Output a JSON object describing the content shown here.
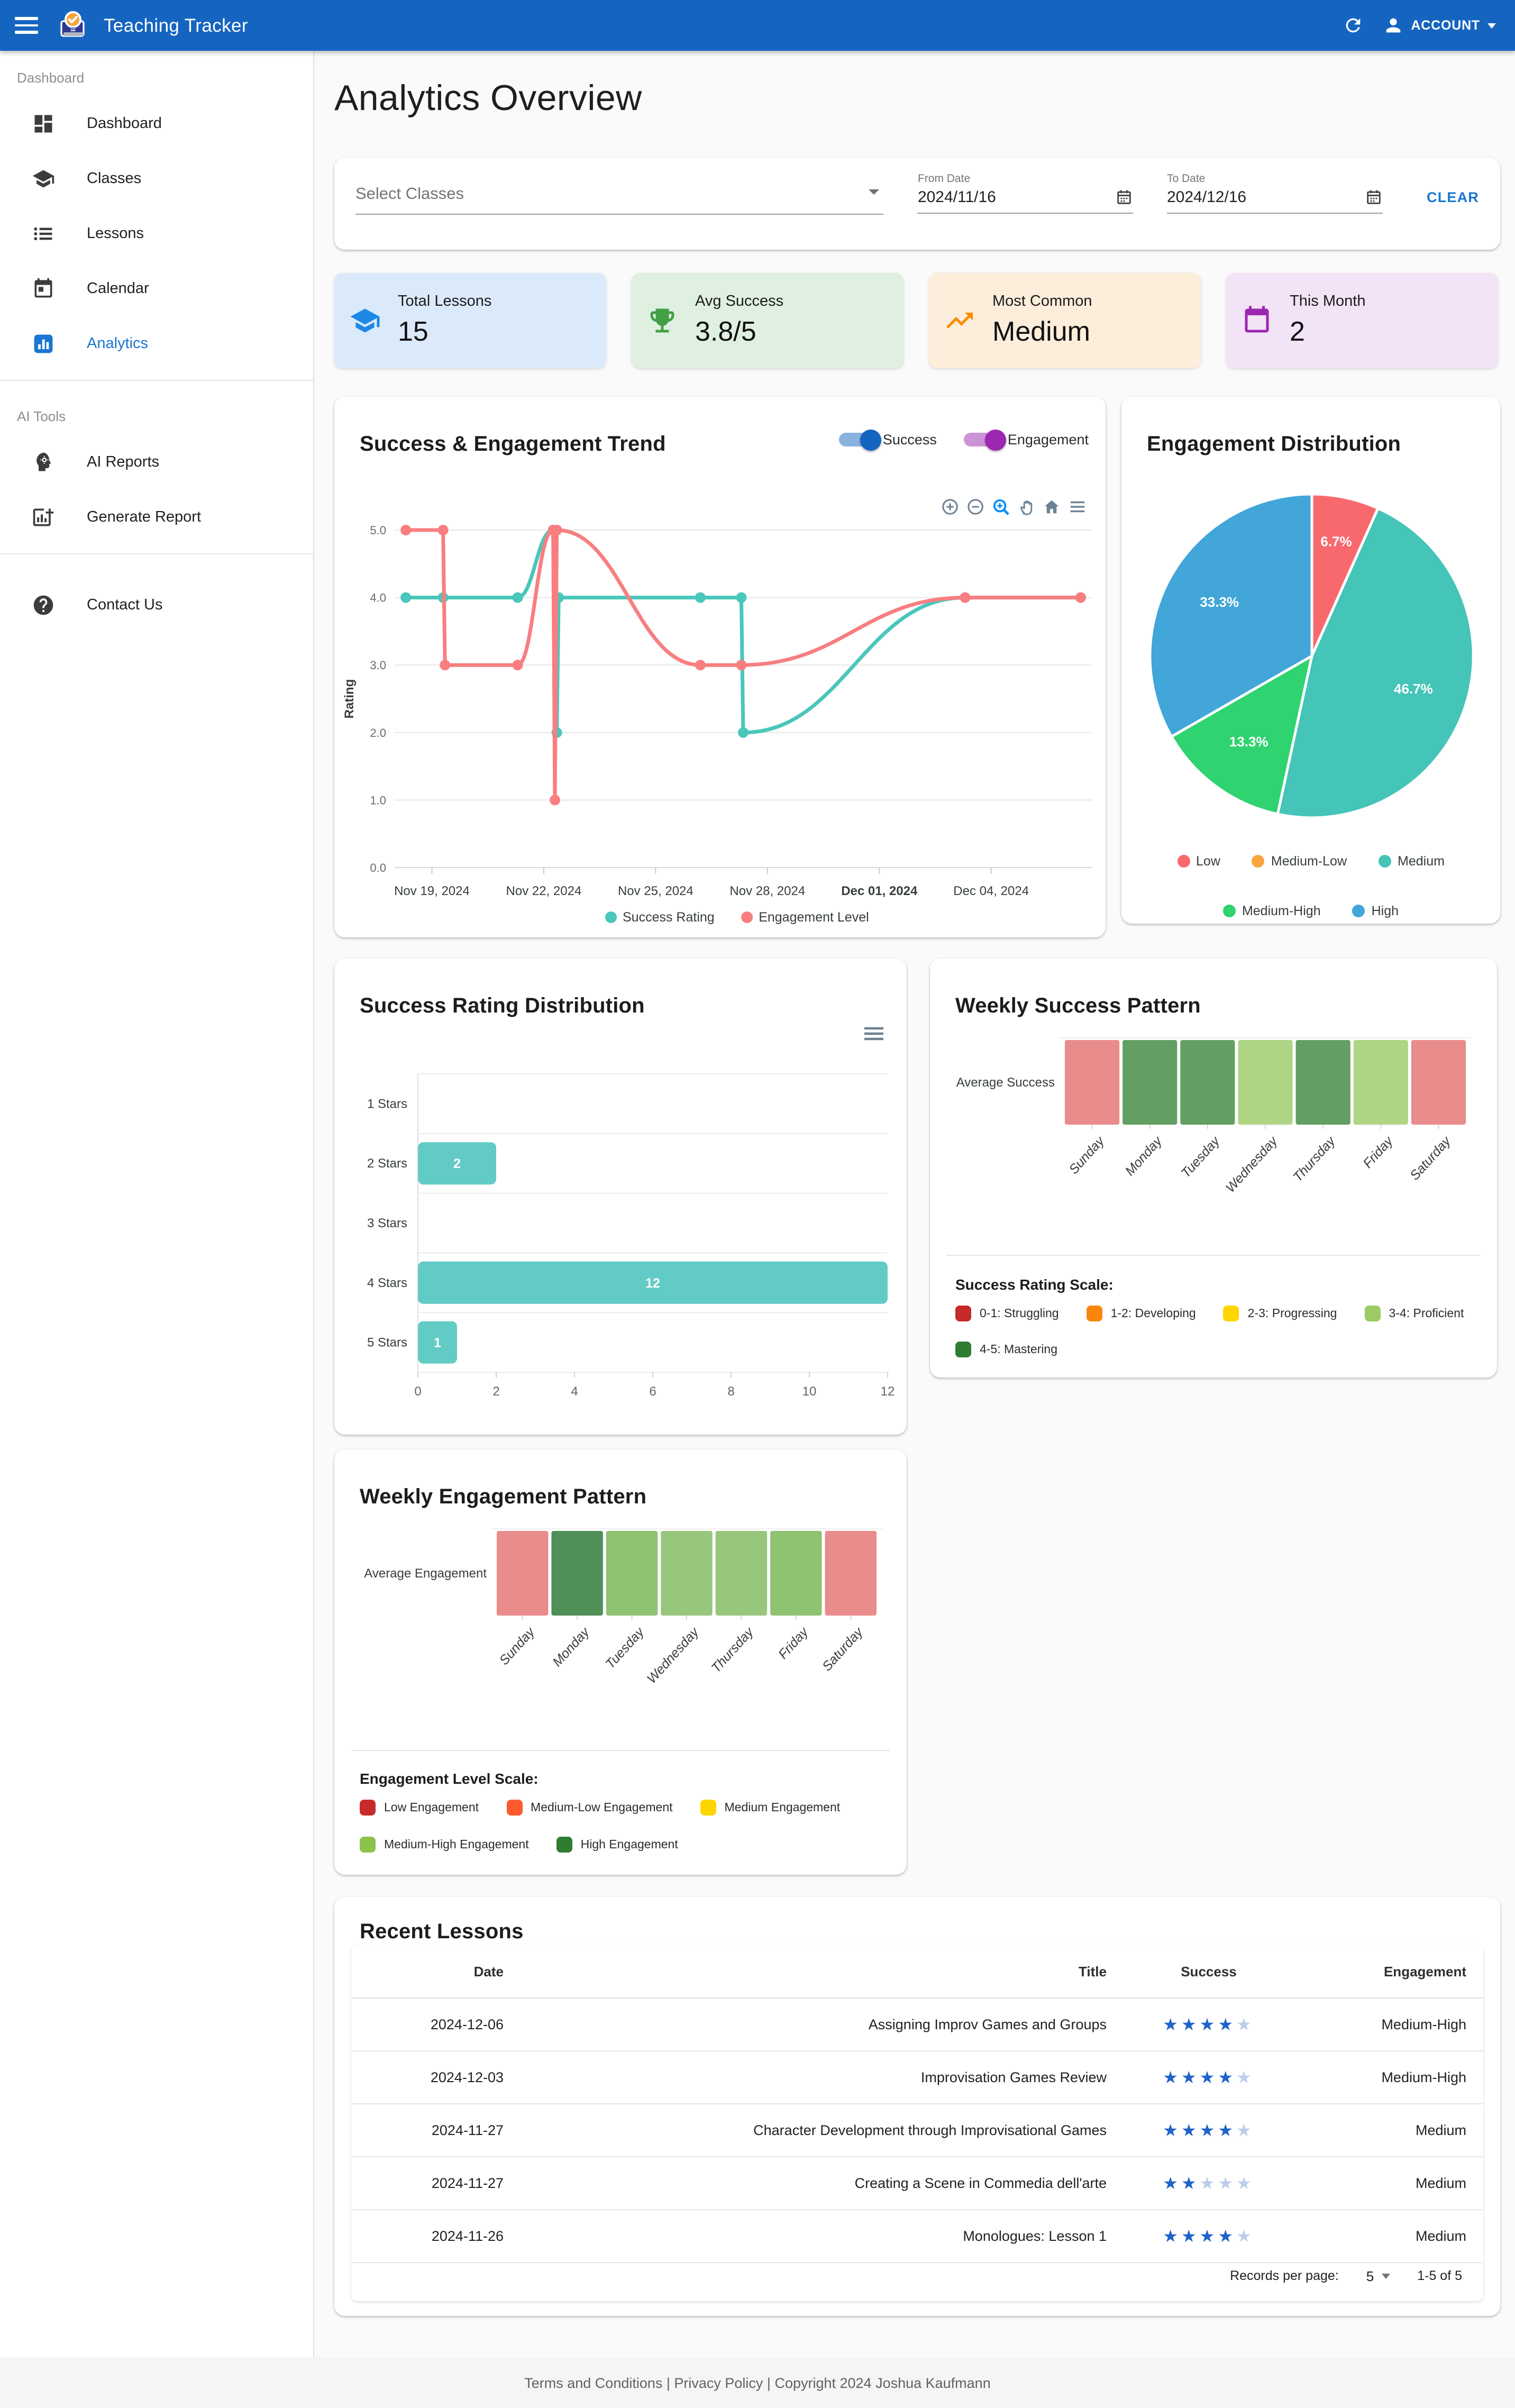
{
  "app": {
    "title": "Teaching Tracker",
    "account_label": "ACCOUNT"
  },
  "sidebar": {
    "sections": [
      {
        "header": "Dashboard",
        "items": [
          {
            "label": "Dashboard",
            "icon": "dashboard-icon",
            "active": false
          },
          {
            "label": "Classes",
            "icon": "classes-icon",
            "active": false
          },
          {
            "label": "Lessons",
            "icon": "lessons-icon",
            "active": false
          },
          {
            "label": "Calendar",
            "icon": "calendar-icon",
            "active": false
          },
          {
            "label": "Analytics",
            "icon": "analytics-icon",
            "active": true
          }
        ]
      },
      {
        "header": "AI Tools",
        "items": [
          {
            "label": "AI Reports",
            "icon": "ai-reports-icon",
            "active": false
          },
          {
            "label": "Generate Report",
            "icon": "generate-report-icon",
            "active": false
          }
        ]
      },
      {
        "header": "",
        "items": [
          {
            "label": "Contact Us",
            "icon": "help-icon",
            "active": false
          }
        ]
      }
    ]
  },
  "page": {
    "title": "Analytics Overview"
  },
  "filters": {
    "select_classes_placeholder": "Select Classes",
    "from_date_label": "From Date",
    "from_date_value": "2024/11/16",
    "to_date_label": "To Date",
    "to_date_value": "2024/12/16",
    "clear_label": "CLEAR"
  },
  "stats": [
    {
      "label": "Total Lessons",
      "value": "15",
      "icon": "school-icon",
      "bg": "#DBEAFB",
      "icon_color": "#1E88E5"
    },
    {
      "label": "Avg Success",
      "value": "3.8/5",
      "icon": "trophy-icon",
      "bg": "#DFF0E1",
      "icon_color": "#43A047"
    },
    {
      "label": "Most Common",
      "value": "Medium",
      "icon": "trending-up-icon",
      "bg": "#FDEEDB",
      "icon_color": "#FB8C00"
    },
    {
      "label": "This Month",
      "value": "2",
      "icon": "calendar-month-icon",
      "bg": "#F3E3F6",
      "icon_color": "#9C27B0"
    }
  ],
  "chart_data": [
    {
      "id": "trend",
      "type": "line",
      "title": "Success & Engagement Trend",
      "ylabel": "Rating",
      "ylim": [
        0,
        5
      ],
      "yticks": [
        "0.0",
        "1.0",
        "2.0",
        "3.0",
        "4.0",
        "5.0"
      ],
      "x_note": "x = days after Nov 18, 2024",
      "xrange": [
        -0.3,
        18.4
      ],
      "xticks": [
        {
          "pos": 0.7,
          "label": "Nov 19, 2024",
          "bold": false
        },
        {
          "pos": 3.7,
          "label": "Nov 22, 2024",
          "bold": false
        },
        {
          "pos": 6.7,
          "label": "Nov 25, 2024",
          "bold": false
        },
        {
          "pos": 9.7,
          "label": "Nov 28, 2024",
          "bold": false
        },
        {
          "pos": 12.7,
          "label": "Dec 01, 2024",
          "bold": true
        },
        {
          "pos": 15.7,
          "label": "Dec 04, 2024",
          "bold": false
        }
      ],
      "series": [
        {
          "name": "Success Rating",
          "color": "#4AC6BB",
          "points": [
            [
              0,
              4
            ],
            [
              1,
              4
            ],
            [
              3,
              4
            ],
            [
              3.95,
              5
            ],
            [
              4.05,
              2
            ],
            [
              4.1,
              4
            ],
            [
              7.9,
              4
            ],
            [
              9,
              4
            ],
            [
              9.05,
              2
            ],
            [
              15,
              4
            ],
            [
              18.1,
              4
            ]
          ]
        },
        {
          "name": "Engagement Level",
          "color": "#F87E80",
          "points": [
            [
              0,
              5
            ],
            [
              1,
              5
            ],
            [
              1.05,
              3
            ],
            [
              3,
              3
            ],
            [
              3.95,
              5
            ],
            [
              4,
              1
            ],
            [
              4.05,
              5
            ],
            [
              7.9,
              3
            ],
            [
              9,
              3
            ],
            [
              15,
              4
            ],
            [
              18.1,
              4
            ]
          ]
        }
      ],
      "toggles": [
        {
          "label": "Success",
          "color": "#1565C0"
        },
        {
          "label": "Engagement",
          "color": "#9C27B0"
        }
      ],
      "toolbar_icons": [
        "zoom-in-icon",
        "zoom-out-icon",
        "selection-zoom-icon",
        "pan-icon",
        "home-icon",
        "menu-icon"
      ]
    },
    {
      "id": "engagement_pie",
      "type": "pie",
      "title": "Engagement Distribution",
      "labels": [
        "Low",
        "Medium-Low",
        "Medium",
        "Medium-High",
        "High"
      ],
      "values": [
        6.7,
        0,
        46.7,
        13.3,
        33.3
      ],
      "colors": [
        "#F8696D",
        "#FAA53D",
        "#45C4B8",
        "#2FD36F",
        "#42A6D9"
      ],
      "legend_position": "bottom"
    },
    {
      "id": "success_bars",
      "type": "bar",
      "orientation": "horizontal",
      "title": "Success Rating Distribution",
      "categories": [
        "1 Stars",
        "2 Stars",
        "3 Stars",
        "4 Stars",
        "5 Stars"
      ],
      "values": [
        0,
        2,
        0,
        12,
        1
      ],
      "color": "#63CBC6",
      "xlim": [
        0,
        12
      ],
      "xticks": [
        0,
        2,
        4,
        6,
        8,
        10,
        12
      ]
    },
    {
      "id": "weekly_success",
      "type": "heatmap",
      "title": "Weekly Success Pattern",
      "row_label": "Average Success",
      "categories": [
        "Sunday",
        "Monday",
        "Tuesday",
        "Wednesday",
        "Thursday",
        "Friday",
        "Saturday"
      ],
      "cell_colors": [
        "#E88C8C",
        "#639F62",
        "#639F62",
        "#AFD584",
        "#639F62",
        "#AFD584",
        "#E88C8C"
      ],
      "legend_title": "Success Rating Scale:",
      "legend": [
        {
          "label": "0-1: Struggling",
          "color": "#C62A2A"
        },
        {
          "label": "1-2: Developing",
          "color": "#F9860B"
        },
        {
          "label": "2-3: Progressing",
          "color": "#FFD500"
        },
        {
          "label": "3-4: Proficient",
          "color": "#9CCB65"
        },
        {
          "label": "4-5: Mastering",
          "color": "#2F7D33"
        }
      ]
    },
    {
      "id": "weekly_engagement",
      "type": "heatmap",
      "title": "Weekly Engagement Pattern",
      "row_label": "Average Engagement",
      "categories": [
        "Sunday",
        "Monday",
        "Tuesday",
        "Wednesday",
        "Thursday",
        "Friday",
        "Saturday"
      ],
      "cell_colors": [
        "#E88C8C",
        "#4F8F58",
        "#8FC271",
        "#97C67D",
        "#97C67D",
        "#8FC271",
        "#E88C8C"
      ],
      "legend_title": "Engagement Level Scale:",
      "legend": [
        {
          "label": "Low Engagement",
          "color": "#C62A2A"
        },
        {
          "label": "Medium-Low Engagement",
          "color": "#FF5A2D"
        },
        {
          "label": "Medium Engagement",
          "color": "#FFD500"
        },
        {
          "label": "Medium-High Engagement",
          "color": "#8BC34A"
        },
        {
          "label": "High Engagement",
          "color": "#2F7D33"
        }
      ]
    }
  ],
  "recent_lessons": {
    "title": "Recent Lessons",
    "columns": [
      "Date",
      "Title",
      "Success",
      "Engagement"
    ],
    "stars": {
      "max": 5,
      "filled_color": "#1E63C8",
      "empty_color": "#BDCDEC"
    },
    "rows": [
      {
        "date": "2024-12-06",
        "title": "Assigning Improv Games and Groups",
        "success": 4,
        "engagement": "Medium-High"
      },
      {
        "date": "2024-12-03",
        "title": "Improvisation Games Review",
        "success": 4,
        "engagement": "Medium-High"
      },
      {
        "date": "2024-11-27",
        "title": "Character Development through Improvisational Games",
        "success": 4,
        "engagement": "Medium"
      },
      {
        "date": "2024-11-27",
        "title": "Creating a Scene in Commedia dell'arte",
        "success": 2,
        "engagement": "Medium"
      },
      {
        "date": "2024-11-26",
        "title": "Monologues: Lesson 1",
        "success": 4,
        "engagement": "Medium"
      }
    ],
    "pagination": {
      "records_per_page_label": "Records per page:",
      "records_per_page_value": "5",
      "range_label": "1-5 of 5"
    }
  },
  "footer": {
    "text": "Terms and Conditions | Privacy Policy | Copyright 2024 Joshua Kaufmann"
  }
}
